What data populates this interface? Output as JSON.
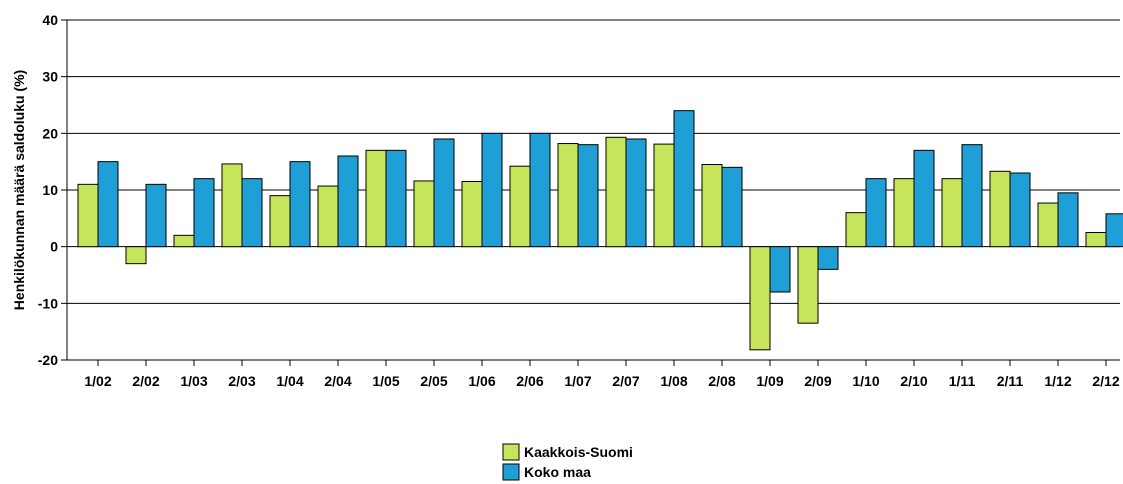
{
  "chart_data": {
    "type": "bar",
    "ylabel": "Henkilökunnan määrä saldoluku (%)",
    "ylim": [
      -20,
      40
    ],
    "yticks": [
      -20,
      -10,
      0,
      10,
      20,
      30,
      40
    ],
    "grid": true,
    "legend_position": "bottom-center",
    "categories": [
      "1/02",
      "2/02",
      "1/03",
      "2/03",
      "1/04",
      "2/04",
      "1/05",
      "2/05",
      "1/06",
      "2/06",
      "1/07",
      "2/07",
      "1/08",
      "2/08",
      "1/09",
      "2/09",
      "1/10",
      "2/10",
      "1/11",
      "2/11",
      "1/12",
      "2/12"
    ],
    "series": [
      {
        "name": "Kaakkois-Suomi",
        "color": "#c7e55a",
        "values": [
          11,
          -3,
          2,
          14.6,
          9,
          10.7,
          17,
          11.6,
          11.5,
          14.2,
          18.2,
          19.3,
          18.1,
          14.5,
          -18.2,
          -13.5,
          6,
          12,
          12,
          13.3,
          7.7,
          2.5
        ]
      },
      {
        "name": "Koko maa",
        "color": "#1f9fd6",
        "values": [
          15,
          11,
          12,
          12,
          15,
          16,
          17,
          19,
          20,
          20,
          18,
          19,
          24,
          14,
          -8,
          -4,
          12,
          17,
          18,
          13,
          9.5,
          5.8
        ]
      }
    ]
  }
}
